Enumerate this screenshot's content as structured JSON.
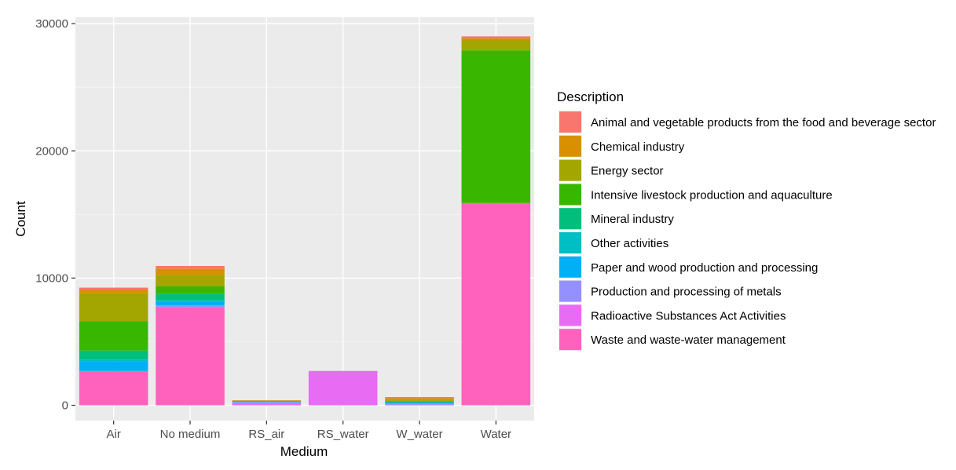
{
  "chart_data": {
    "type": "bar",
    "stacked": true,
    "title": "",
    "xlabel": "Medium",
    "ylabel": "Count",
    "ylim": [
      -1200,
      30500
    ],
    "yticks": [
      0,
      10000,
      20000,
      30000
    ],
    "ytick_labels": [
      "0",
      "10000",
      "20000",
      "30000"
    ],
    "grid": true,
    "legend_position": "right",
    "legend_title": "Description",
    "categories": [
      "Air",
      "No medium",
      "RS_air",
      "RS_water",
      "W_water",
      "Water"
    ],
    "series": [
      {
        "name": "Animal and vegetable products from the food and beverage sector",
        "color": "#F8766D",
        "values": [
          180,
          200,
          10,
          0,
          80,
          150
        ]
      },
      {
        "name": "Chemical industry",
        "color": "#D89000",
        "values": [
          270,
          500,
          20,
          0,
          170,
          170
        ]
      },
      {
        "name": "Energy sector",
        "color": "#A3A500",
        "values": [
          2200,
          900,
          60,
          0,
          120,
          780
        ]
      },
      {
        "name": "Intensive livestock production and aquaculture",
        "color": "#39B600",
        "values": [
          2300,
          600,
          0,
          0,
          30,
          12000
        ]
      },
      {
        "name": "Mineral industry",
        "color": "#00BF7D",
        "values": [
          700,
          500,
          0,
          0,
          0,
          0
        ]
      },
      {
        "name": "Other activities",
        "color": "#00BFC4",
        "values": [
          150,
          100,
          40,
          0,
          0,
          0
        ]
      },
      {
        "name": "Paper and wood production and processing",
        "color": "#00B0F6",
        "values": [
          750,
          300,
          40,
          0,
          100,
          0
        ]
      },
      {
        "name": "Production and processing of metals",
        "color": "#9590FF",
        "values": [
          0,
          150,
          50,
          0,
          150,
          0
        ]
      },
      {
        "name": "Radioactive Substances Act Activities",
        "color": "#E76BF3",
        "values": [
          0,
          0,
          180,
          2700,
          0,
          0
        ]
      },
      {
        "name": "Waste and waste-water management",
        "color": "#FF62BC",
        "values": [
          2700,
          7700,
          0,
          0,
          0,
          15900
        ]
      }
    ]
  },
  "legend": {
    "title": "Description",
    "items": [
      "Animal and vegetable products from the food and beverage sector",
      "Chemical industry",
      "Energy sector",
      "Intensive livestock production and aquaculture",
      "Mineral industry",
      "Other activities",
      "Paper and wood production and processing",
      "Production and processing of metals",
      "Radioactive Substances Act Activities",
      "Waste and waste-water management"
    ]
  },
  "colors": {
    "panel_background": "#EBEBEB",
    "grid_major": "#FFFFFF",
    "axis_text": "#4D4D4D",
    "axis_title": "#000000"
  }
}
